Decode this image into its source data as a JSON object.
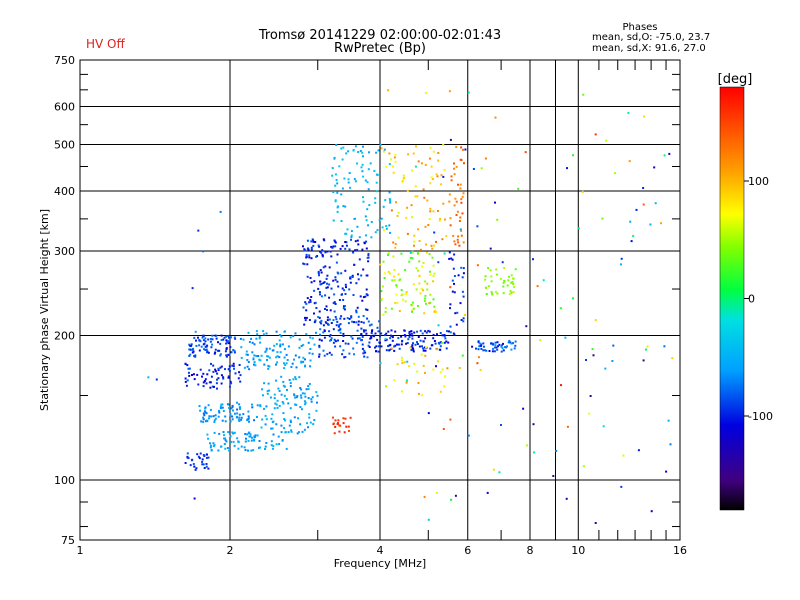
{
  "header": {
    "status": "HV Off",
    "title_line1": "Tromsø 20141229 02:00:00-02:01:43",
    "title_line2": "RwPretec (Bp)"
  },
  "phases": {
    "title": "Phases",
    "o_stats": "mean, sd,O: -75.0, 23.7",
    "x_stats": "mean, sd,X:  91.6, 27.0"
  },
  "colors": {
    "status": "#e0201a",
    "grid": "#000000"
  },
  "chart_data": {
    "type": "scatter",
    "xlabel": "Frequency [MHz]",
    "ylabel": "Stationary phase Virtual Height [km]",
    "xscale": "log",
    "yscale": "log",
    "xlim": [
      1,
      16
    ],
    "ylim": [
      75,
      750
    ],
    "grid": true,
    "xticks": [
      1,
      2,
      4,
      6,
      8,
      10,
      16
    ],
    "xtick_labels": [
      "1",
      "2",
      "4",
      "6",
      "8",
      "10",
      "16"
    ],
    "yticks": [
      75,
      100,
      200,
      300,
      400,
      500,
      600,
      750
    ],
    "ytick_labels": [
      "75",
      "100",
      "200",
      "300",
      "400",
      "500",
      "600",
      "750"
    ],
    "colorbar": {
      "label": "[deg]",
      "range": [
        -180,
        180
      ],
      "ticks": [
        100,
        0,
        -100
      ],
      "tick_labels": [
        "100",
        "0",
        "-100"
      ]
    },
    "clusters": [
      {
        "f": [
          1.65,
          2.05
        ],
        "h": [
          180,
          200
        ],
        "phase": [
          -110,
          -70
        ],
        "n": 90
      },
      {
        "f": [
          1.62,
          2.1
        ],
        "h": [
          155,
          175
        ],
        "phase": [
          -120,
          -80
        ],
        "n": 70
      },
      {
        "f": [
          1.72,
          2.3
        ],
        "h": [
          132,
          145
        ],
        "phase": [
          -80,
          -50
        ],
        "n": 80
      },
      {
        "f": [
          1.8,
          2.6
        ],
        "h": [
          115,
          126
        ],
        "phase": [
          -70,
          -40
        ],
        "n": 80
      },
      {
        "f": [
          1.62,
          1.82
        ],
        "h": [
          104,
          114
        ],
        "phase": [
          -110,
          -80
        ],
        "n": 30
      },
      {
        "f": [
          2.1,
          3.0
        ],
        "h": [
          170,
          205
        ],
        "phase": [
          -75,
          -40
        ],
        "n": 110
      },
      {
        "f": [
          2.3,
          3.0
        ],
        "h": [
          125,
          165
        ],
        "phase": [
          -70,
          -40
        ],
        "n": 110
      },
      {
        "f": [
          2.8,
          3.8
        ],
        "h": [
          210,
          320
        ],
        "phase": [
          -120,
          -80
        ],
        "n": 200
      },
      {
        "f": [
          3.0,
          4.0
        ],
        "h": [
          180,
          220
        ],
        "phase": [
          -110,
          -70
        ],
        "n": 110
      },
      {
        "f": [
          3.2,
          4.2
        ],
        "h": [
          320,
          500
        ],
        "phase": [
          -60,
          -30
        ],
        "n": 100
      },
      {
        "f": [
          3.8,
          5.5
        ],
        "h": [
          185,
          205
        ],
        "phase": [
          -120,
          -80
        ],
        "n": 120
      },
      {
        "f": [
          4.0,
          5.2
        ],
        "h": [
          220,
          300
        ],
        "phase": [
          20,
          100
        ],
        "n": 90
      },
      {
        "f": [
          4.0,
          5.5
        ],
        "h": [
          300,
          500
        ],
        "phase": [
          60,
          130
        ],
        "n": 80
      },
      {
        "f": [
          4.2,
          5.5
        ],
        "h": [
          150,
          190
        ],
        "phase": [
          60,
          120
        ],
        "n": 30
      },
      {
        "f": [
          5.5,
          5.9
        ],
        "h": [
          300,
          500
        ],
        "phase": [
          110,
          150
        ],
        "n": 40
      },
      {
        "f": [
          5.5,
          5.9
        ],
        "h": [
          200,
          300
        ],
        "phase": [
          -120,
          -80
        ],
        "n": 30
      },
      {
        "f": [
          6.2,
          7.5
        ],
        "h": [
          185,
          195
        ],
        "phase": [
          -110,
          -60
        ],
        "n": 50
      },
      {
        "f": [
          6.5,
          7.5
        ],
        "h": [
          240,
          280
        ],
        "phase": [
          30,
          60
        ],
        "n": 40
      },
      {
        "f": [
          3.2,
          3.5
        ],
        "h": [
          125,
          135
        ],
        "phase": [
          140,
          170
        ],
        "n": 20
      },
      {
        "f": [
          4.0,
          7.0
        ],
        "h": [
          80,
          650
        ],
        "phase": [
          -150,
          150
        ],
        "n": 60
      },
      {
        "f": [
          7.0,
          15.5
        ],
        "h": [
          80,
          660
        ],
        "phase": [
          -150,
          170
        ],
        "n": 70
      },
      {
        "f": [
          1.2,
          2.0
        ],
        "h": [
          90,
          460
        ],
        "phase": [
          -120,
          -40
        ],
        "n": 8
      }
    ]
  }
}
